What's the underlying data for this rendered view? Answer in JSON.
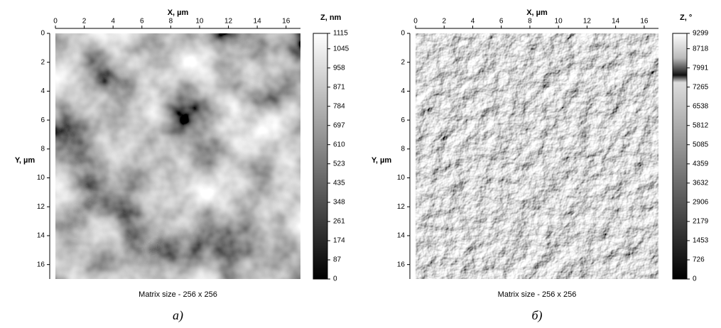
{
  "chart_data": [
    {
      "type": "image",
      "x_label": "X, µm",
      "y_label": "Y, µm",
      "colorbar_label": "Z, nm",
      "xlim": [
        0,
        17
      ],
      "ylim": [
        0,
        17
      ],
      "xticks": [
        0,
        2,
        4,
        6,
        8,
        10,
        12,
        14,
        16
      ],
      "yticks": [
        0,
        2,
        4,
        6,
        8,
        10,
        12,
        14,
        16
      ],
      "colorbar_lim": [
        0,
        1115
      ],
      "colorbar_ticks": [
        0,
        87,
        174,
        261,
        348,
        435,
        523,
        610,
        697,
        784,
        871,
        958,
        1045,
        1115
      ],
      "caption": "Matrix size - 256 x 256",
      "panel_label": "а)"
    },
    {
      "type": "image",
      "x_label": "X, µm",
      "y_label": "Y, µm",
      "colorbar_label": "Z, °",
      "xlim": [
        0,
        17
      ],
      "ylim": [
        0,
        17
      ],
      "xticks": [
        0,
        2,
        4,
        6,
        8,
        10,
        12,
        14,
        16
      ],
      "yticks": [
        0,
        2,
        4,
        6,
        8,
        10,
        12,
        14,
        16
      ],
      "colorbar_lim": [
        0,
        9299
      ],
      "colorbar_ticks": [
        0,
        726,
        1453,
        2179,
        2906,
        3632,
        4359,
        5085,
        5812,
        6538,
        7265,
        7991,
        8718,
        9299
      ],
      "caption": "Matrix size - 256 x 256",
      "panel_label": "б)"
    }
  ]
}
